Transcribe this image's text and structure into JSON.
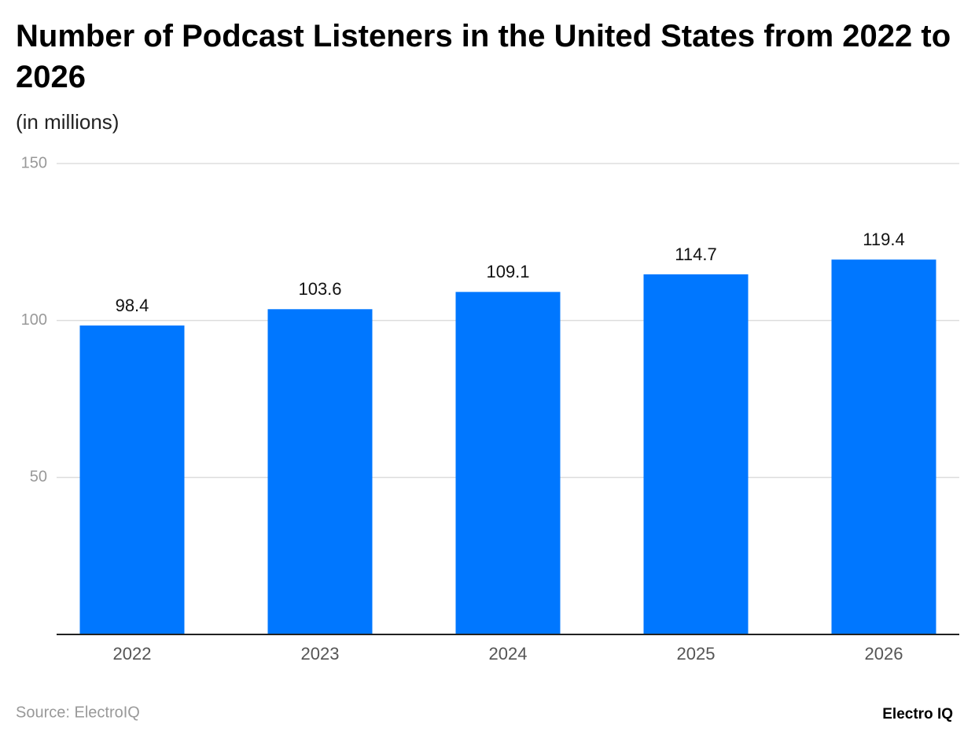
{
  "chart_data": {
    "type": "bar",
    "title": "Number of Podcast Listeners in the United States from 2022 to 2026",
    "subtitle": "(in millions)",
    "categories": [
      "2022",
      "2023",
      "2024",
      "2025",
      "2026"
    ],
    "values": [
      98.4,
      103.6,
      109.1,
      114.7,
      119.4
    ],
    "color": "#0077ff",
    "ylim": [
      0,
      150
    ],
    "yticks": [
      50,
      100,
      150
    ],
    "grid": true,
    "source": "Source: ElectroIQ",
    "brand": "Electro IQ"
  }
}
